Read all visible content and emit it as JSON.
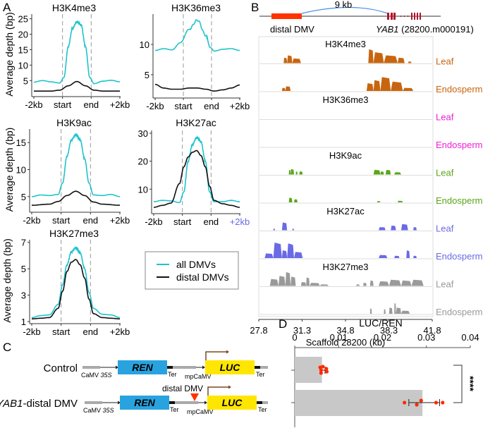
{
  "panel_labels": {
    "a": "A",
    "b": "B",
    "c": "C",
    "d": "D"
  },
  "colors": {
    "all_dmvs": "#1fc3cc",
    "distal_dmvs": "#111111",
    "h3k4me3": "#c8650f",
    "h3k36me3": "#ee1fd8",
    "h3k9ac": "#5aa619",
    "h3k27ac": "#6a6ae6",
    "h3k27me3": "#9a9a9a",
    "distal_dmv_block": "#ff3300",
    "exon": "#b3122a",
    "loop": "#4a90e2",
    "ren_box": "#29a3e0",
    "luc_box": "#ffe600",
    "promoter_arrow": "#7a4a22",
    "bar_fill": "#c8c8c8",
    "dot": "#ff2a00",
    "triangle": "#ff3300"
  },
  "chart_data": [
    {
      "type": "line",
      "panel": "A",
      "title": "H3K4me3",
      "ylabel": "Average depth (bp)",
      "x_ticks": [
        "-2kb",
        "start",
        "end",
        "+2kb"
      ],
      "y_ticks": [
        5,
        10,
        15,
        20,
        25
      ],
      "ylim": [
        0.5,
        26.5
      ],
      "series": [
        {
          "name": "all DMVs",
          "x": [
            0,
            0.1,
            0.2,
            0.3,
            0.35,
            0.4,
            0.45,
            0.5,
            0.55,
            0.6,
            0.65,
            0.7,
            0.8,
            0.9,
            1.0
          ],
          "y": [
            4.5,
            5.0,
            4.6,
            4.2,
            6,
            16,
            22,
            24,
            23,
            16,
            6,
            4.0,
            4.8,
            5.1,
            4.6
          ]
        },
        {
          "name": "distal DMVs",
          "x": [
            0,
            0.2,
            0.3,
            0.4,
            0.5,
            0.6,
            0.7,
            0.8,
            1.0
          ],
          "y": [
            1.6,
            1.6,
            1.9,
            3.3,
            4.7,
            3.3,
            1.9,
            1.6,
            1.6
          ]
        }
      ]
    },
    {
      "type": "line",
      "panel": "A",
      "title": "H3K36me3",
      "ylabel": "",
      "x_ticks": [
        "-2kb",
        "start",
        "end",
        "+2kb"
      ],
      "y_ticks": [
        5,
        10
      ],
      "ylim": [
        1.5,
        15.0
      ],
      "series": [
        {
          "name": "all DMVs",
          "x": [
            0,
            0.1,
            0.2,
            0.3,
            0.4,
            0.5,
            0.6,
            0.65,
            0.7,
            0.8,
            0.9,
            1.0
          ],
          "y": [
            9.0,
            9.3,
            9.1,
            10.3,
            12.5,
            14.0,
            11.5,
            9.5,
            8.9,
            9.2,
            9.3,
            9.0
          ]
        },
        {
          "name": "distal DMVs",
          "x": [
            0,
            0.1,
            0.2,
            0.3,
            0.4,
            0.5,
            0.6,
            0.7,
            0.8,
            0.9,
            1.0
          ],
          "y": [
            3.4,
            2.8,
            2.6,
            2.6,
            2.8,
            2.8,
            2.6,
            2.3,
            2.5,
            2.8,
            3.3
          ]
        }
      ]
    },
    {
      "type": "line",
      "panel": "A",
      "title": "H3K9ac",
      "ylabel": "Average depth (bp)",
      "x_ticks": [
        "-2kb",
        "start",
        "end",
        "+2kb"
      ],
      "y_ticks": [
        5,
        10,
        15
      ],
      "ylim": [
        2.5,
        17.5
      ],
      "series": [
        {
          "name": "all DMVs",
          "x": [
            0,
            0.1,
            0.2,
            0.3,
            0.35,
            0.4,
            0.45,
            0.5,
            0.55,
            0.6,
            0.65,
            0.7,
            0.8,
            0.9,
            1.0
          ],
          "y": [
            5.0,
            5.3,
            5.2,
            5.4,
            7.5,
            12.5,
            15.5,
            16.5,
            15.5,
            12,
            7.5,
            5.3,
            5.2,
            5.4,
            5.0
          ]
        },
        {
          "name": "distal DMVs",
          "x": [
            0,
            0.2,
            0.3,
            0.4,
            0.5,
            0.6,
            0.7,
            0.8,
            1.0
          ],
          "y": [
            3.4,
            3.6,
            4.1,
            5.2,
            6.0,
            5.2,
            4.0,
            3.6,
            3.4
          ]
        }
      ]
    },
    {
      "type": "line",
      "panel": "A",
      "title": "H3K27ac",
      "ylabel": "",
      "x_ticks": [
        "-2kb",
        "start",
        "end",
        "+2kb"
      ],
      "y_ticks": [
        10,
        20,
        30
      ],
      "ylim": [
        2.0,
        31.0
      ],
      "series": [
        {
          "name": "all DMVs",
          "x": [
            0,
            0.1,
            0.2,
            0.3,
            0.35,
            0.4,
            0.45,
            0.5,
            0.55,
            0.6,
            0.65,
            0.7,
            0.8,
            0.9,
            1.0
          ],
          "y": [
            5.5,
            6.0,
            5.8,
            5.2,
            9,
            20,
            26,
            28.5,
            27,
            20,
            9,
            5.5,
            5.5,
            6.0,
            5.5
          ]
        },
        {
          "name": "distal DMVs",
          "x": [
            0,
            0.1,
            0.2,
            0.3,
            0.35,
            0.4,
            0.45,
            0.5,
            0.55,
            0.6,
            0.65,
            0.7,
            0.8,
            0.9,
            1.0
          ],
          "y": [
            3.5,
            4.2,
            5.0,
            12,
            18,
            21.5,
            23.2,
            23.8,
            22,
            18,
            11,
            6.0,
            4.8,
            4.2,
            3.5
          ]
        }
      ]
    },
    {
      "type": "line",
      "panel": "A",
      "title": "H3K27me3",
      "ylabel": "Average depth (bp)",
      "x_ticks": [
        "-2kb",
        "start",
        "end",
        "+2kb"
      ],
      "y_ticks": [
        1,
        3,
        5,
        7
      ],
      "ylim": [
        1.0,
        7.2
      ],
      "series": [
        {
          "name": "all DMVs",
          "x": [
            0,
            0.1,
            0.2,
            0.3,
            0.35,
            0.4,
            0.45,
            0.5,
            0.55,
            0.6,
            0.65,
            0.7,
            0.8,
            0.9,
            1.0
          ],
          "y": [
            1.3,
            1.45,
            1.5,
            2.3,
            3.8,
            5.3,
            6.3,
            6.6,
            6.2,
            5.0,
            3.2,
            2.0,
            1.55,
            1.5,
            1.3
          ]
        },
        {
          "name": "distal DMVs",
          "x": [
            0,
            0.1,
            0.2,
            0.3,
            0.35,
            0.4,
            0.45,
            0.5,
            0.55,
            0.6,
            0.65,
            0.7,
            0.8,
            0.9,
            1.0
          ],
          "y": [
            1.2,
            1.25,
            1.3,
            2.0,
            3.3,
            4.8,
            5.5,
            5.7,
            5.3,
            4.3,
            2.7,
            1.6,
            1.3,
            1.25,
            1.2
          ]
        }
      ]
    },
    {
      "type": "bar",
      "panel": "D",
      "orientation": "horizontal",
      "title": "LUC/REN",
      "xlabel": "LUC/REN",
      "x_ticks": [
        "0",
        "0.01",
        "0.02",
        "0.03",
        "0.04"
      ],
      "xlim": [
        0,
        0.04
      ],
      "categories": [
        "Control",
        "YAB1-distal DMV"
      ],
      "values": [
        0.0062,
        0.0291
      ],
      "error": [
        [
          0.0059,
          0.0069
        ],
        [
          0.026,
          0.033
        ]
      ],
      "points": [
        [
          0.0064,
          0.0072,
          0.006,
          0.0073,
          0.006,
          0.0058
        ],
        [
          0.025,
          0.0288,
          0.0278,
          0.0322,
          0.0337
        ]
      ],
      "significance": "****"
    }
  ],
  "legend": {
    "items": [
      "all DMVs",
      "distal DMVs"
    ]
  },
  "genome_browser": {
    "loop_label": "9 kb",
    "distal_label": "distal DMV",
    "gene_label_italic": "YAB1",
    "gene_label_rest": " (28200.m000191)",
    "x_axis_ticks": [
      "27.8",
      "31.3",
      "34.8",
      "38.3",
      "41.8"
    ],
    "x_axis_label": "Scaffold 28200 (kb)",
    "tracks": [
      {
        "mark": "H3K4me3",
        "tissue": "Leaf",
        "show_title": true,
        "color_key": "h3k4me3",
        "peaks": [
          [
            0.14,
            0.16,
            0.35
          ],
          [
            0.16,
            0.19,
            0.5
          ],
          [
            0.19,
            0.24,
            0.3
          ],
          [
            0.63,
            0.66,
            0.9
          ],
          [
            0.66,
            0.72,
            0.7
          ],
          [
            0.72,
            0.8,
            0.5
          ],
          [
            0.8,
            0.84,
            0.35
          ],
          [
            0.86,
            0.88,
            0.1
          ]
        ]
      },
      {
        "mark": "H3K4me3",
        "tissue": "Endosperm",
        "show_title": false,
        "color_key": "h3k4me3",
        "peaks": [
          [
            0.13,
            0.15,
            0.2
          ],
          [
            0.15,
            0.18,
            0.3
          ],
          [
            0.62,
            0.66,
            0.5
          ],
          [
            0.66,
            0.7,
            0.7
          ],
          [
            0.7,
            0.76,
            0.9
          ],
          [
            0.76,
            0.83,
            0.6
          ],
          [
            0.83,
            0.89,
            0.2
          ]
        ]
      },
      {
        "mark": "H3K36me3",
        "tissue": "Leaf",
        "show_title": true,
        "color_key": "h3k36me3",
        "peaks": []
      },
      {
        "mark": "H3K36me3",
        "tissue": "Endosperm",
        "show_title": false,
        "color_key": "h3k36me3",
        "peaks": []
      },
      {
        "mark": "H3K9ac",
        "tissue": "Leaf",
        "show_title": true,
        "color_key": "h3k9ac",
        "peaks": [
          [
            0.17,
            0.18,
            0.3
          ],
          [
            0.18,
            0.2,
            0.35
          ],
          [
            0.21,
            0.22,
            0.2
          ],
          [
            0.23,
            0.25,
            0.2
          ],
          [
            0.66,
            0.7,
            0.3
          ],
          [
            0.7,
            0.72,
            0.2
          ],
          [
            0.73,
            0.76,
            0.3
          ],
          [
            0.78,
            0.82,
            0.15
          ]
        ]
      },
      {
        "mark": "H3K9ac",
        "tissue": "Endosperm",
        "show_title": false,
        "color_key": "h3k9ac",
        "peaks": [
          [
            0.17,
            0.19,
            0.3
          ],
          [
            0.2,
            0.22,
            0.2
          ],
          [
            0.68,
            0.7,
            0.08
          ],
          [
            0.8,
            0.83,
            0.1
          ]
        ]
      },
      {
        "mark": "H3K27ac",
        "tissue": "Leaf",
        "show_title": true,
        "color_key": "h3k27ac",
        "peaks": [
          [
            0.08,
            0.09,
            0.1
          ],
          [
            0.13,
            0.16,
            0.5
          ],
          [
            0.19,
            0.2,
            0.1
          ],
          [
            0.69,
            0.73,
            0.2
          ],
          [
            0.76,
            0.79,
            0.3
          ],
          [
            0.82,
            0.86,
            0.4
          ],
          [
            0.89,
            0.91,
            0.2
          ]
        ]
      },
      {
        "mark": "H3K27ac",
        "tissue": "Endosperm",
        "show_title": false,
        "color_key": "h3k27ac",
        "peaks": [
          [
            0.03,
            0.08,
            0.3
          ],
          [
            0.08,
            0.13,
            1.0
          ],
          [
            0.13,
            0.16,
            0.5
          ],
          [
            0.16,
            0.2,
            0.95
          ],
          [
            0.2,
            0.25,
            0.4
          ],
          [
            0.69,
            0.74,
            0.2
          ],
          [
            0.78,
            0.81,
            0.15
          ],
          [
            0.85,
            0.87,
            0.5
          ],
          [
            0.89,
            0.91,
            0.15
          ]
        ]
      },
      {
        "mark": "H3K27me3",
        "tissue": "Leaf",
        "show_title": true,
        "color_key": "h3k27me3",
        "peaks": [
          [
            0.06,
            0.11,
            0.45
          ],
          [
            0.11,
            0.15,
            0.65
          ],
          [
            0.15,
            0.18,
            0.9
          ],
          [
            0.18,
            0.21,
            0.6
          ],
          [
            0.24,
            0.27,
            0.25
          ],
          [
            0.27,
            0.29,
            0.55
          ],
          [
            0.29,
            0.35,
            0.2
          ],
          [
            0.35,
            0.4,
            0.1
          ],
          [
            0.56,
            0.58,
            0.1
          ],
          [
            0.6,
            0.62,
            0.2
          ],
          [
            0.64,
            0.66,
            0.35
          ],
          [
            0.69,
            0.75,
            0.3
          ],
          [
            0.75,
            0.82,
            0.4
          ],
          [
            0.82,
            0.88,
            0.35
          ],
          [
            0.88,
            0.95,
            0.4
          ]
        ]
      },
      {
        "mark": "H3K27me3",
        "tissue": "Endosperm",
        "show_title": false,
        "color_key": "h3k27me3",
        "peaks": [
          [
            0.64,
            0.65,
            0.35
          ],
          [
            0.72,
            0.73,
            0.3
          ],
          [
            0.75,
            0.77,
            0.4
          ],
          [
            0.78,
            0.79,
            0.7
          ],
          [
            0.79,
            0.82,
            0.4
          ],
          [
            0.82,
            0.87,
            0.2
          ]
        ]
      }
    ]
  },
  "constructs": {
    "rows": [
      {
        "name": "Control",
        "name_italic": "",
        "promoter_label": "CaMV",
        "promoter_italic": "35S",
        "ren": "REN",
        "luc": "LUC",
        "ter1": "Ter",
        "mp": "mpCaMV",
        "ter2": "Ter",
        "insert": ""
      },
      {
        "name": "-distal DMV",
        "name_italic": "YAB1",
        "promoter_label": "CaMV",
        "promoter_italic": "35S",
        "ren": "REN",
        "luc": "LUC",
        "ter1": "Ter",
        "mp": "mpCaMV",
        "ter2": "Ter",
        "insert": "distal DMV"
      }
    ]
  }
}
